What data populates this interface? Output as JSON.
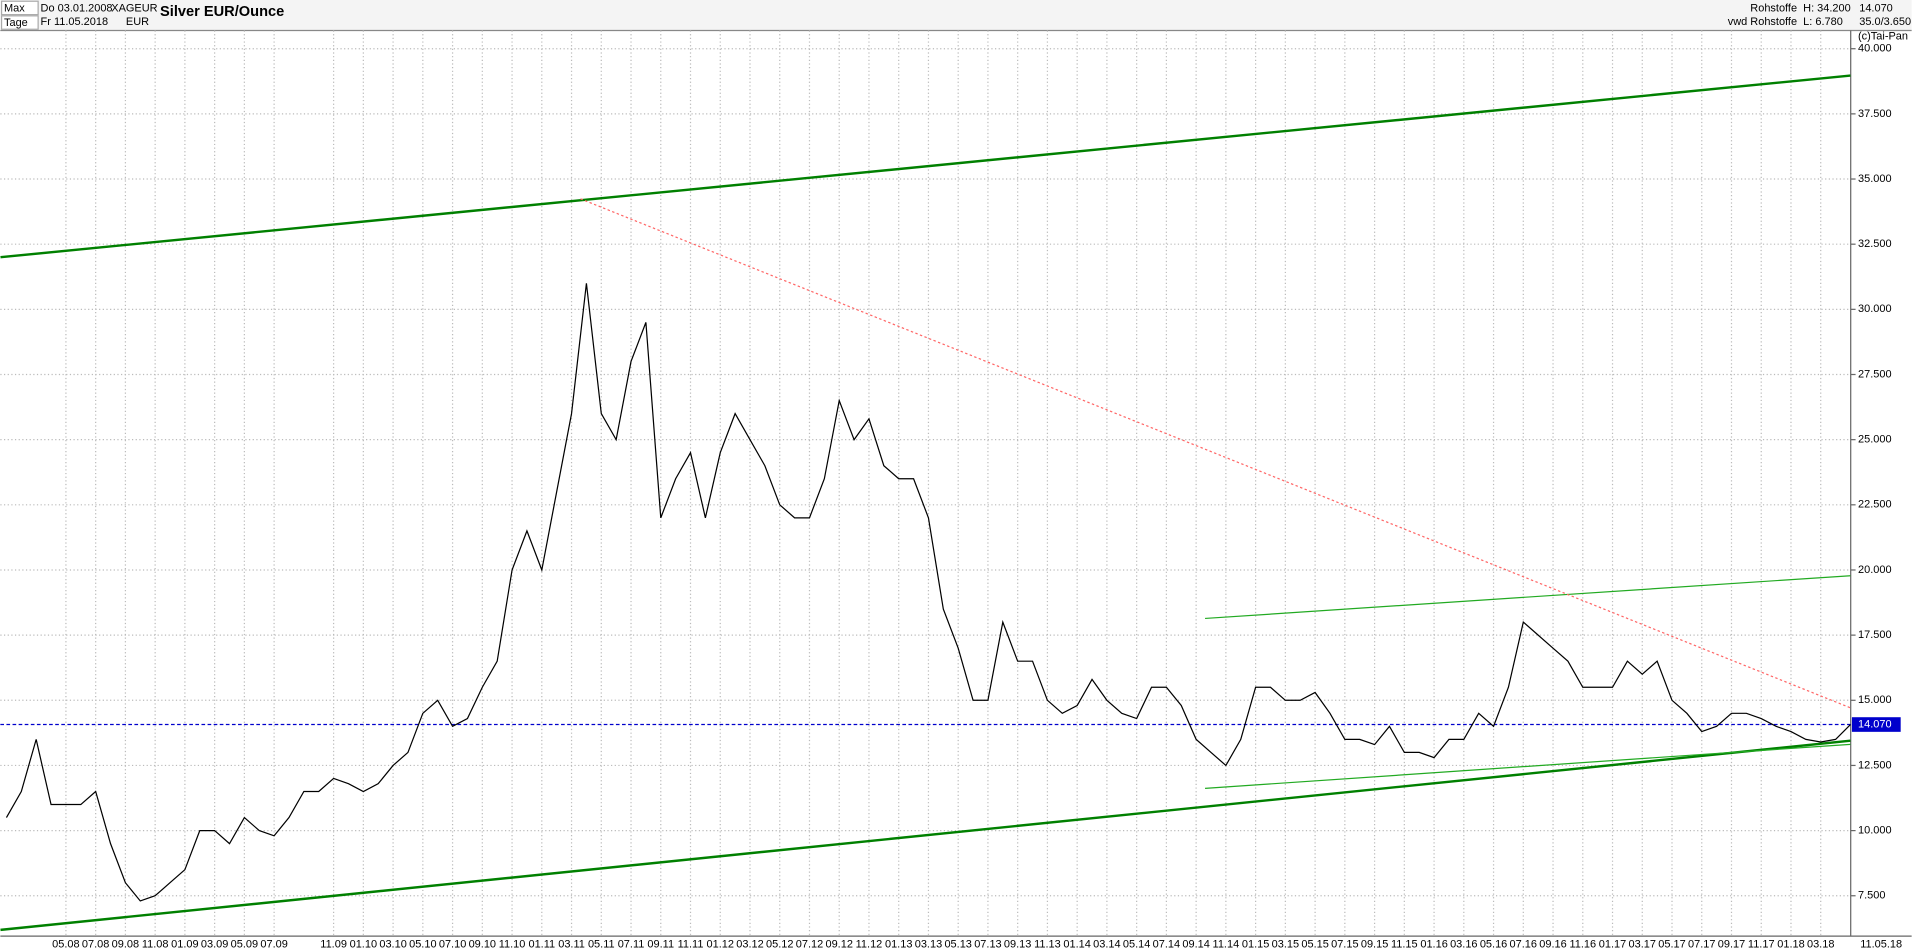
{
  "header": {
    "range": "Max",
    "interval": "Tage",
    "start": "Do 03.01.2008",
    "end": "Fr 11.05.2018",
    "symbol": "XAGEUR",
    "currency": "EUR",
    "title": "Silver EUR/Ounce",
    "group": "Rohstoffe",
    "source": "vwd Rohstoffe",
    "high": "H: 34.200",
    "low": "L: 6.780",
    "last": "14.070",
    "ratio": "35.0/3.650",
    "copyright": "(c)Tai-Pan"
  },
  "chart_data": {
    "type": "line",
    "color": "#000000",
    "categories": [
      null,
      null,
      null,
      null,
      "05.08",
      null,
      "07.08",
      null,
      "09.08",
      null,
      "11.08",
      null,
      "01.09",
      null,
      "03.09",
      null,
      "05.09",
      null,
      "07.09",
      null,
      null,
      null,
      "11.09",
      null,
      "01.10",
      null,
      "03.10",
      null,
      "05.10",
      null,
      "07.10",
      null,
      "09.10",
      null,
      "11.10",
      null,
      "01.11",
      null,
      "03.11",
      null,
      "05.11",
      null,
      "07.11",
      null,
      "09.11",
      null,
      "11.11",
      null,
      "01.12",
      null,
      "03.12",
      null,
      "05.12",
      null,
      "07.12",
      null,
      "09.12",
      null,
      "11.12",
      null,
      "01.13",
      null,
      "03.13",
      null,
      "05.13",
      null,
      "07.13",
      null,
      "09.13",
      null,
      "11.13",
      null,
      "01.14",
      null,
      "03.14",
      null,
      "05.14",
      null,
      "07.14",
      null,
      "09.14",
      null,
      "11.14",
      null,
      "01.15",
      null,
      "03.15",
      null,
      "05.15",
      null,
      "07.15",
      null,
      "09.15",
      null,
      "11.15",
      null,
      "01.16",
      null,
      "03.16",
      null,
      "05.16",
      null,
      "07.16",
      null,
      "09.16",
      null,
      "11.16",
      null,
      "01.17",
      null,
      "03.17",
      null,
      "05.17",
      null,
      "07.17",
      null,
      "09.17",
      null,
      "11.17",
      null,
      "01.18",
      null,
      "03.18",
      null,
      null
    ],
    "values": [
      10.5,
      11.5,
      13.5,
      11,
      11,
      11,
      11.5,
      9.5,
      8,
      7.3,
      7.5,
      8,
      8.5,
      10,
      10,
      9.5,
      10.5,
      10,
      9.8,
      10.5,
      11.5,
      11.5,
      12,
      11.8,
      11.5,
      11.8,
      12.5,
      13,
      14.5,
      15,
      14,
      14.3,
      15.5,
      16.5,
      20,
      21.5,
      20,
      23,
      26,
      31,
      26,
      25,
      28,
      29.5,
      22,
      23.5,
      24.5,
      22,
      24.5,
      26,
      25,
      24,
      22.5,
      22,
      22,
      23.5,
      26.5,
      25,
      25.8,
      24,
      23.5,
      23.5,
      22,
      18.5,
      17,
      15,
      15,
      18,
      16.5,
      16.5,
      15,
      14.5,
      14.8,
      15.8,
      15,
      14.5,
      14.3,
      15.5,
      15.5,
      14.8,
      13.5,
      13,
      12.5,
      13.5,
      15.5,
      15.5,
      15,
      15,
      15.3,
      14.5,
      13.5,
      13.5,
      13.3,
      14,
      13,
      13,
      12.8,
      13.5,
      13.5,
      14.5,
      14,
      15.5,
      18,
      17.5,
      17,
      16.5,
      15.5,
      15.5,
      15.5,
      16.5,
      16,
      16.5,
      15,
      14.5,
      13.8,
      14,
      14.5,
      14.5,
      14.3,
      14,
      13.8,
      13.5,
      13.4,
      13.5,
      14.07
    ],
    "end_label": "11.05.18",
    "ylim": [
      5.95,
      40.7
    ],
    "yticks": [
      {
        "value": 7.5,
        "label": "7.500"
      },
      {
        "value": 10,
        "label": "10.000"
      },
      {
        "value": 12.5,
        "label": "12.500"
      },
      {
        "value": 15,
        "label": "15.000"
      },
      {
        "value": 17.5,
        "label": "17.500"
      },
      {
        "value": 20,
        "label": "20.000"
      },
      {
        "value": 22.5,
        "label": "22.500"
      },
      {
        "value": 25,
        "label": "25.000"
      },
      {
        "value": 27.5,
        "label": "27.500"
      },
      {
        "value": 30,
        "label": "30.000"
      },
      {
        "value": 32.5,
        "label": "32.500"
      },
      {
        "value": 35,
        "label": "35.000"
      },
      {
        "value": 37.5,
        "label": "37.500"
      },
      {
        "value": 40,
        "label": "40.000"
      }
    ],
    "grid": true,
    "last_price": {
      "value": 14.07,
      "label": "14.070",
      "color": "#0000cc"
    },
    "trendlines": [
      {
        "x": [
          -0.4,
          124
        ],
        "y": [
          32.0,
          38.97
        ],
        "color": "#008000",
        "style": "thick"
      },
      {
        "x": [
          -0.4,
          124
        ],
        "y": [
          6.19,
          13.45
        ],
        "color": "#008000",
        "style": "thick"
      },
      {
        "x": [
          80.6,
          124
        ],
        "y": [
          18.14,
          19.78
        ],
        "color": "#22aa22",
        "style": "thin"
      },
      {
        "x": [
          80.6,
          124
        ],
        "y": [
          11.62,
          13.31
        ],
        "color": "#22aa22",
        "style": "thin"
      },
      {
        "x": [
          38.6,
          124
        ],
        "y": [
          34.24,
          14.71
        ],
        "color": "#ff6666",
        "style": "dotted"
      }
    ]
  }
}
